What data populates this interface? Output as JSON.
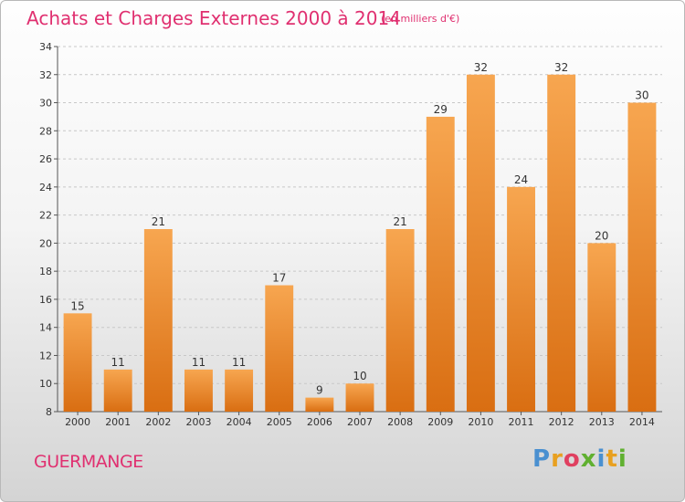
{
  "header": {
    "title": "Achats et Charges Externes 2000 à 2014",
    "unit": "(en milliers d'€)"
  },
  "footer": {
    "place": "GUERMANGE",
    "logo": [
      "P",
      "r",
      "o",
      "x",
      "i",
      "t",
      "i"
    ]
  },
  "colors": {
    "title": "#e03070",
    "bar_light": "#f7a650",
    "bar_dark": "#d96e12",
    "logo": [
      "#4a90d0",
      "#e8a020",
      "#e04060",
      "#60b030",
      "#4a90d0",
      "#e8a020",
      "#60b030"
    ]
  },
  "chart_data": {
    "type": "bar",
    "categories": [
      "2000",
      "2001",
      "2002",
      "2003",
      "2004",
      "2005",
      "2006",
      "2007",
      "2008",
      "2009",
      "2010",
      "2011",
      "2012",
      "2013",
      "2014"
    ],
    "values": [
      15,
      11,
      21,
      11,
      11,
      17,
      9,
      10,
      21,
      29,
      32,
      24,
      32,
      20,
      30
    ],
    "data_labels": [
      "15",
      "11",
      "21",
      "11",
      "11",
      "17",
      "9",
      "10",
      "21",
      "29",
      "32",
      "24",
      "32",
      "20",
      "30"
    ],
    "ylim": [
      8,
      34
    ],
    "yticks": [
      "8",
      "10",
      "12",
      "14",
      "16",
      "18",
      "20",
      "22",
      "24",
      "26",
      "28",
      "30",
      "32",
      "34"
    ],
    "grid": true
  }
}
